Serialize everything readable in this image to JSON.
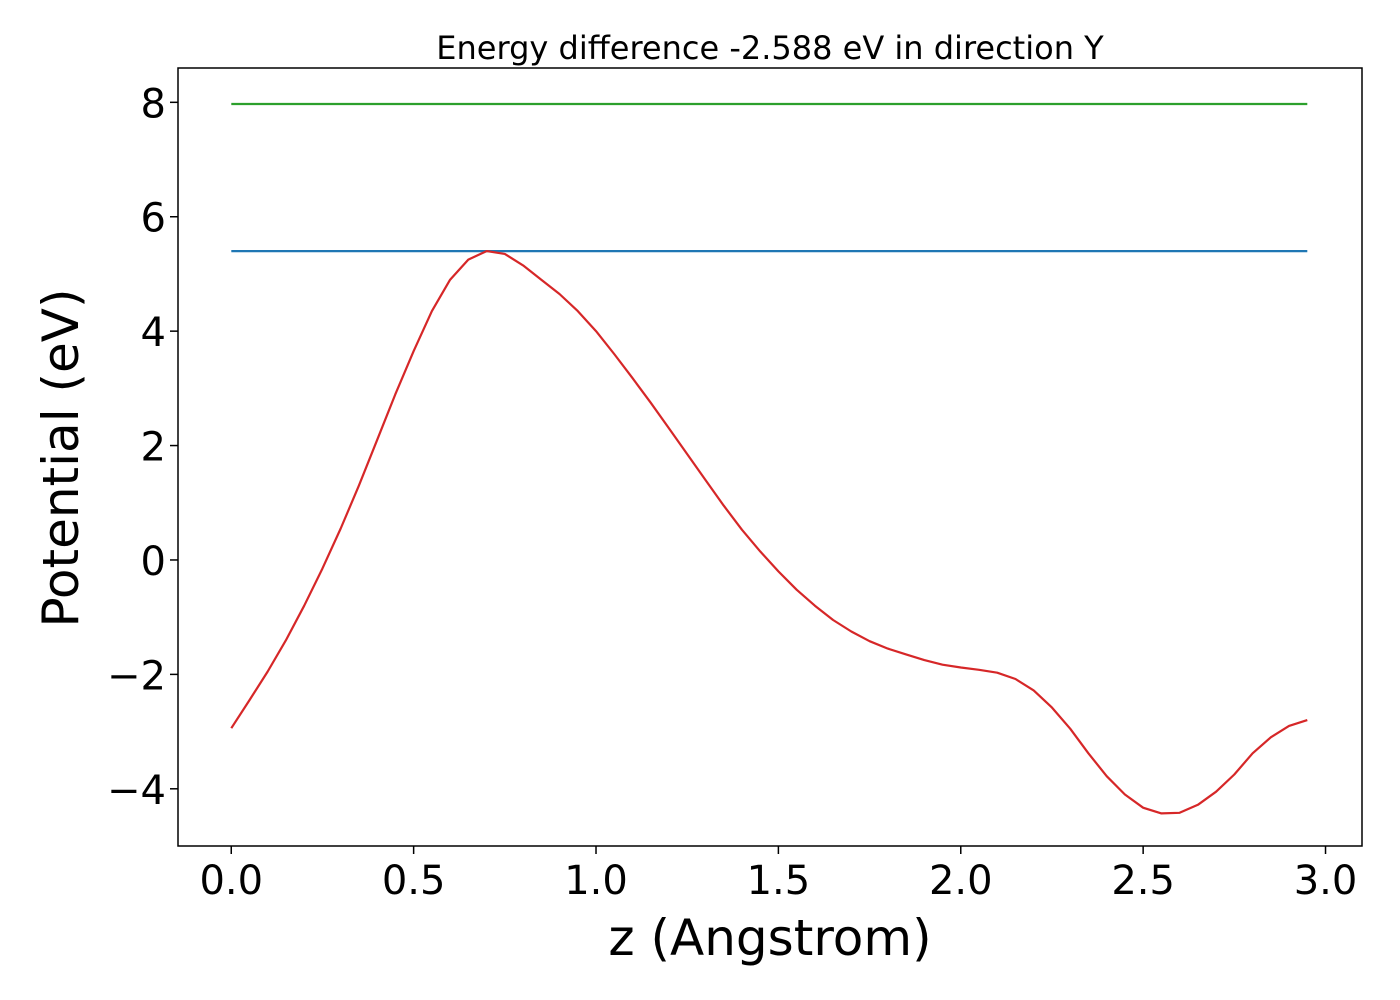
{
  "chart_data": {
    "type": "line",
    "title": "Energy difference -2.588 eV in direction Y",
    "xlabel": "z (Angstrom)",
    "ylabel": "Potential (eV)",
    "xlim": [
      -0.146,
      3.1
    ],
    "ylim": [
      -5.0,
      8.6
    ],
    "xticks": [
      0.0,
      0.5,
      1.0,
      1.5,
      2.0,
      2.5,
      3.0
    ],
    "xtick_labels": [
      "0.0",
      "0.5",
      "1.0",
      "1.5",
      "2.0",
      "2.5",
      "3.0"
    ],
    "yticks": [
      -4,
      -2,
      0,
      2,
      4,
      6,
      8
    ],
    "ytick_labels": [
      "−4",
      "−2",
      "0",
      "2",
      "4",
      "6",
      "8"
    ],
    "grid": false,
    "legend": "none",
    "series": [
      {
        "color": "#2ca02c",
        "x": [
          0.0,
          2.95
        ],
        "y": [
          7.97,
          7.97
        ]
      },
      {
        "color": "#1f77b4",
        "x": [
          0.0,
          2.95
        ],
        "y": [
          5.4,
          5.4
        ]
      },
      {
        "color": "#d62728",
        "x": [
          0.0,
          0.05,
          0.1,
          0.15,
          0.2,
          0.25,
          0.3,
          0.35,
          0.4,
          0.45,
          0.5,
          0.55,
          0.6,
          0.65,
          0.7,
          0.75,
          0.8,
          0.85,
          0.9,
          0.95,
          1.0,
          1.05,
          1.1,
          1.15,
          1.2,
          1.25,
          1.3,
          1.35,
          1.4,
          1.45,
          1.5,
          1.55,
          1.6,
          1.65,
          1.7,
          1.75,
          1.8,
          1.85,
          1.9,
          1.95,
          2.0,
          2.05,
          2.1,
          2.15,
          2.2,
          2.25,
          2.3,
          2.35,
          2.4,
          2.45,
          2.5,
          2.55,
          2.6,
          2.65,
          2.7,
          2.75,
          2.8,
          2.85,
          2.9,
          2.95
        ],
        "y": [
          -2.94,
          -2.45,
          -1.95,
          -1.4,
          -0.8,
          -0.15,
          0.55,
          1.3,
          2.1,
          2.9,
          3.65,
          4.35,
          4.9,
          5.25,
          5.4,
          5.35,
          5.15,
          4.9,
          4.65,
          4.35,
          4.0,
          3.6,
          3.18,
          2.75,
          2.3,
          1.85,
          1.4,
          0.95,
          0.53,
          0.15,
          -0.2,
          -0.52,
          -0.8,
          -1.05,
          -1.25,
          -1.42,
          -1.55,
          -1.65,
          -1.75,
          -1.83,
          -1.88,
          -1.92,
          -1.97,
          -2.08,
          -2.28,
          -2.58,
          -2.95,
          -3.38,
          -3.78,
          -4.1,
          -4.33,
          -4.43,
          -4.42,
          -4.28,
          -4.05,
          -3.75,
          -3.38,
          -3.1,
          -2.9,
          -2.8
        ]
      }
    ]
  }
}
